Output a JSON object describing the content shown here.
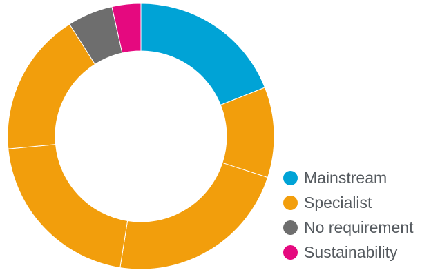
{
  "chart_data": {
    "type": "pie",
    "variant": "donut",
    "title": "",
    "legend_position": "bottom-right",
    "segments": [
      {
        "label": "Mainstream",
        "value": 19.0,
        "color": "#00a3d6"
      },
      {
        "label": "Specialist",
        "value": 11.0,
        "color": "#f29e0c"
      },
      {
        "label": "Specialist",
        "value": 22.5,
        "color": "#f29e0c"
      },
      {
        "label": "Specialist",
        "value": 21.0,
        "color": "#f29e0c"
      },
      {
        "label": "Specialist",
        "value": 17.5,
        "color": "#f29e0c"
      },
      {
        "label": "No requirement",
        "value": 5.5,
        "color": "#6e6e6e"
      },
      {
        "label": "Sustainability",
        "value": 3.5,
        "color": "#e5097f"
      }
    ],
    "legend": [
      {
        "label": "Mainstream",
        "color": "#00a3d6"
      },
      {
        "label": "Specialist",
        "color": "#f29e0c"
      },
      {
        "label": "No requirement",
        "color": "#6e6e6e"
      },
      {
        "label": "Sustainability",
        "color": "#e5097f"
      }
    ]
  }
}
